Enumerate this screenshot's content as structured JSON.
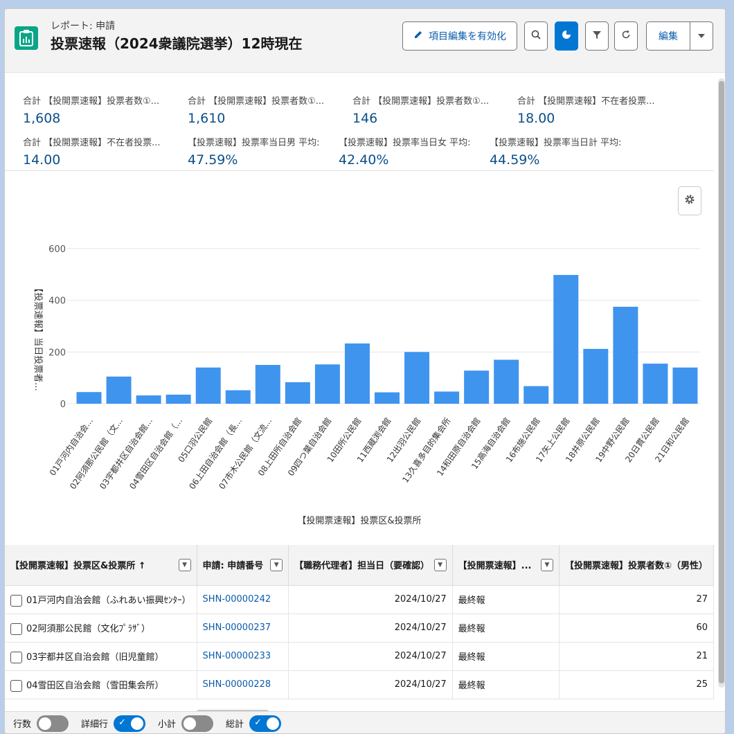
{
  "header": {
    "eyebrow": "レポート: 申請",
    "title": "投票速報（2024衆議院選挙）12時現在",
    "edit_fields_label": "項目編集を有効化",
    "edit_label": "編集"
  },
  "summary": [
    {
      "label": "合計 【投開票速報】投票者数①...",
      "value": "1,608"
    },
    {
      "label": "合計 【投開票速報】投票者数①...",
      "value": "1,610"
    },
    {
      "label": "合計 【投開票速報】投票者数①...",
      "value": "146"
    },
    {
      "label": "合計 【投開票速報】不在者投票...",
      "value": "18.00"
    },
    {
      "label": "合計 【投開票速報】不在者投票...",
      "value": "14.00"
    },
    {
      "label": "【投票速報】投票率当日男 平均:",
      "value": "47.59%"
    },
    {
      "label": "【投票速報】投票率当日女 平均:",
      "value": "42.40%"
    },
    {
      "label": "【投票速報】投票率当日計 平均:",
      "value": "44.59%"
    }
  ],
  "chart_data": {
    "type": "bar",
    "xlabel": "【投開票速報】投票区&投票所",
    "ylabel": "【投票速報】当日投票者...",
    "ylim": [
      0,
      600
    ],
    "yticks": [
      0,
      200,
      400,
      600
    ],
    "color": "#3f94ee",
    "categories": [
      "01戸河内自治会...",
      "02阿須那公民館（文...",
      "03宇都井区自治会館...",
      "04雪田区自治会館（...",
      "05口羽公民館",
      "06上田自治会館（長...",
      "07市木公民館（文流...",
      "08上田所自治会館",
      "09四つ葉自治会館",
      "10田所公民館",
      "11西蔵渕会館",
      "12出羽公民館",
      "13久喜多目的集会所",
      "14和田原自治会館",
      "15高海自治会館",
      "16布施公民館",
      "17矢上公民館",
      "18井原公民館",
      "19中野公民館",
      "20日貫公民館",
      "21日和公民館"
    ],
    "values": [
      45,
      105,
      32,
      35,
      140,
      52,
      150,
      83,
      152,
      233,
      44,
      200,
      47,
      128,
      170,
      68,
      498,
      212,
      375,
      155,
      140
    ]
  },
  "table": {
    "columns": [
      "【投開票速報】投票区&投票所 ↑",
      "申請: 申請番号",
      "【職務代理者】担当日（要確認）",
      "【投開票速報】...",
      "【投開票速報】投票者数①（男性）"
    ],
    "rows": [
      {
        "place": "01戸河内自治会館（ふれあい振興ｾﾝﾀｰ）",
        "app_no": "SHN-00000242",
        "date": "2024/10/27",
        "status": "最終報",
        "count": "27"
      },
      {
        "place": "02阿須那公民館（文化ﾌﾟﾗｻﾞ）",
        "app_no": "SHN-00000237",
        "date": "2024/10/27",
        "status": "最終報",
        "count": "60"
      },
      {
        "place": "03宇都井区自治会館（旧児童館）",
        "app_no": "SHN-00000233",
        "date": "2024/10/27",
        "status": "最終報",
        "count": "21"
      },
      {
        "place": "04雪田区自治会館（雪田集会所）",
        "app_no": "SHN-00000228",
        "date": "2024/10/27",
        "status": "最終報",
        "count": "25"
      }
    ]
  },
  "footer": {
    "row_count_label": "行数",
    "detail_rows_label": "詳細行",
    "subtotal_label": "小計",
    "grand_total_label": "総計"
  }
}
